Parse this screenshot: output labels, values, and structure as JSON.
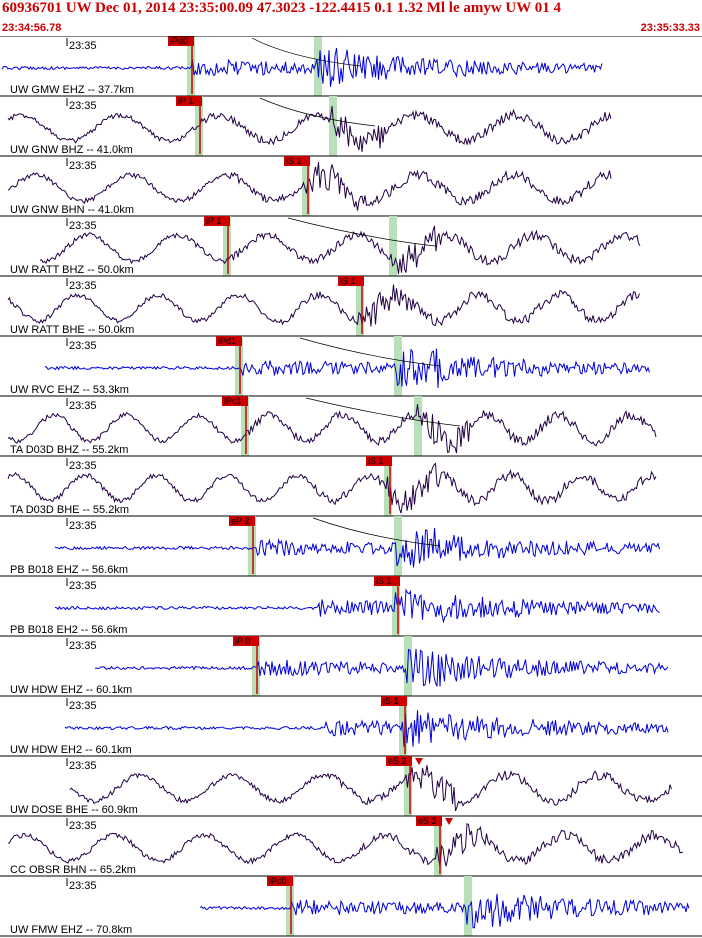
{
  "header": {
    "title": "60936701 UW Dec 01, 2014 23:35:00.09    47.3023 -122.4415  0.1 1.32 Ml le amyw UW 01    4",
    "start_time": "23:34:56.78",
    "end_time": "23:35:33.33"
  },
  "colors": {
    "accent": "#cc0000",
    "short_period": "#0000dd",
    "broadband": "#220044",
    "pick_window": "#b8e0b8"
  },
  "tick_label": "23:35",
  "traces": [
    {
      "label": "UW GMW EHZ -- 37.7km",
      "kind": "sp",
      "p_pick": "iPd0",
      "s_pick": ""
    },
    {
      "label": "UW GNW BHZ -- 41.0km",
      "kind": "bb",
      "p_pick": "iP 1",
      "s_pick": ""
    },
    {
      "label": "UW GNW BHN -- 41.0km",
      "kind": "bb",
      "p_pick": "",
      "s_pick": "iS 1"
    },
    {
      "label": "UW RATT BHZ -- 50.0km",
      "kind": "bb",
      "p_pick": "iP 1",
      "s_pick": ""
    },
    {
      "label": "UW RATT BHE -- 50.0km",
      "kind": "bb",
      "p_pick": "",
      "s_pick": "iS 1"
    },
    {
      "label": "UW RVC EHZ -- 53.3km",
      "kind": "sp",
      "p_pick": "iPd1",
      "s_pick": ""
    },
    {
      "label": "TA D03D BHZ -- 55.2km",
      "kind": "bb",
      "p_pick": "iPc1",
      "s_pick": ""
    },
    {
      "label": "TA D03D BHE -- 55.2km",
      "kind": "bb",
      "p_pick": "",
      "s_pick": "iS 1"
    },
    {
      "label": "PB B018 EHZ -- 56.6km",
      "kind": "sp",
      "p_pick": "eP 2",
      "s_pick": ""
    },
    {
      "label": "PB B018 EH2 -- 56.6km",
      "kind": "sp",
      "p_pick": "",
      "s_pick": "iS 1"
    },
    {
      "label": "UW HDW EHZ -- 60.1km",
      "kind": "sp",
      "p_pick": "iP 0",
      "s_pick": ""
    },
    {
      "label": "UW HDW EH2 -- 60.1km",
      "kind": "sp",
      "p_pick": "",
      "s_pick": "iS 1"
    },
    {
      "label": "UW DOSE BHE -- 60.9km",
      "kind": "bb",
      "p_pick": "",
      "s_pick": "eS 2"
    },
    {
      "label": "CC OBSR BHN -- 65.2km",
      "kind": "bb",
      "p_pick": "",
      "s_pick": "eS 2"
    },
    {
      "label": "UW FMW EHZ -- 70.8km",
      "kind": "sp",
      "p_pick": "iPc0",
      "s_pick": ""
    }
  ]
}
